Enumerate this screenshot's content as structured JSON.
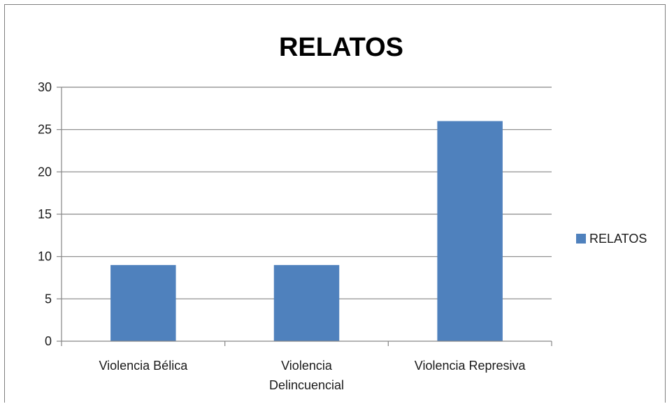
{
  "chart_data": {
    "type": "bar",
    "title": "RELATOS",
    "categories": [
      [
        "Violencia Bélica"
      ],
      [
        "Violencia",
        "Delincuencial"
      ],
      [
        "Violencia Represiva"
      ]
    ],
    "series": [
      {
        "name": "RELATOS",
        "values": [
          9,
          9,
          26
        ],
        "color": "#4f81bd"
      }
    ],
    "ylim": [
      0,
      30
    ],
    "yticks": [
      0,
      5,
      10,
      15,
      20,
      25,
      30
    ],
    "grid": true,
    "legend": "right"
  }
}
